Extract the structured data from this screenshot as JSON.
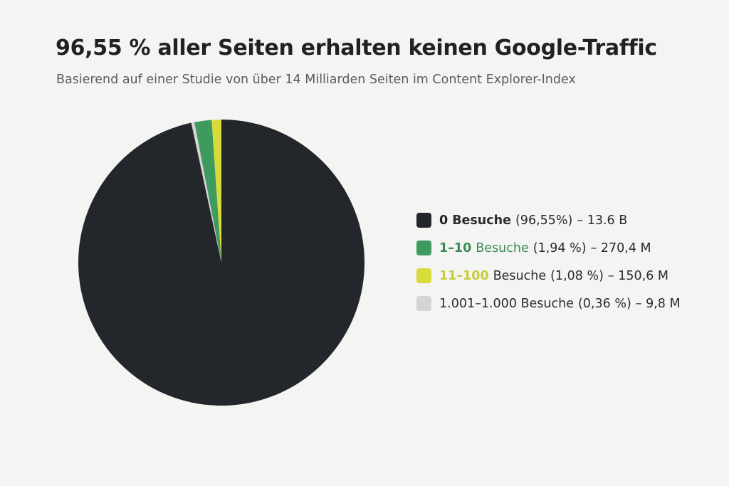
{
  "chart_data": {
    "type": "pie",
    "title": "96,55 % aller Seiten erhalten keinen Google-Traffic",
    "subtitle": "Basierend auf einer Studie von über 14 Milliarden Seiten im Content Explorer-Index",
    "legend_position": "right",
    "slices": [
      {
        "range": "0",
        "label": "Besuche",
        "percent": 96.55,
        "percent_text": "(96,55%)",
        "count_text": "– 13.6 B",
        "color": "#23262b",
        "range_color": "#1f2125",
        "bold": true
      },
      {
        "range": "",
        "label": "1.001–1.000 Besuche",
        "percent": 0.36,
        "percent_text": "(0,36 %)",
        "count_text": "– 9,8 M",
        "color": "#d4d4d4",
        "range_color": "#2a2b2e",
        "bold": false
      },
      {
        "range": "1–10",
        "label": "Besuche",
        "percent": 1.94,
        "percent_text": "(1,94 %)",
        "count_text": "– 270,4 M",
        "color": "#3f9a5e",
        "range_color": "#3a8a56",
        "label_color": "#3a8a56",
        "bold": false
      },
      {
        "range": "11–100",
        "label": "Besuche",
        "percent": 1.08,
        "percent_text": "(1,08 %)",
        "count_text": "– 150,6 M",
        "color": "#d8dc3a",
        "range_color": "#c9cd3a",
        "bold": false
      }
    ],
    "legend_order": [
      0,
      2,
      3,
      1
    ]
  }
}
